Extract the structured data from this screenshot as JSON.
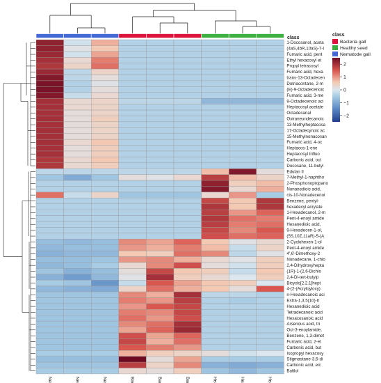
{
  "chart_data": {
    "type": "heatmap",
    "columns": [
      "Nem_3",
      "Nem_1",
      "Nem_2",
      "Bact_1",
      "Bact_2",
      "Bact_3",
      "Health_3",
      "Health_1",
      "Health_2"
    ],
    "column_class": [
      "Nematode gall",
      "Nematode gall",
      "Nematode gall",
      "Bacteria gall",
      "Bacteria gall",
      "Bacteria gall",
      "Healthy seed",
      "Healthy seed",
      "Healthy seed"
    ],
    "rows": [
      "1-Docosanol, aceta",
      "(4aS,4bR,10aS)-7-I",
      "Fumaric acid, pent",
      "Ethyl hexacosyl et",
      "Propyl tetracosyl",
      "Fumaric acid, hexa",
      "trans-13-Octadecen",
      "Dotriacontane, 2-m",
      "(E)-9-Octadecenoic",
      "Fumaric acid, 3-me",
      "9-Octadecenoic aci",
      "Heptacosyl acetate",
      "Octadecanal",
      "Oxiraneundecanoic",
      "13-Methylheptacosa",
      "17-Octadecynoic ac",
      "15-Methylnonacosan",
      "Fumaric acid, 4-oc",
      "Heptacos-1-ene",
      "Heptacosyl trifluo",
      "Carbonic acid, oct",
      "Docosane, 11-butyl",
      "Edulan II",
      "7-Methyl-1-naphtho",
      "2-Phosphonopropano",
      "Nonanedioic acid,",
      "cis-10-Nonadecenoi",
      "Benzene, pentyl-",
      "hexadecyl acrylate",
      "1-Hexadecanol, 2-m",
      "Pent-4-enoyl amide",
      "Hexanedioic acid,",
      "9-Hexadecen-1-ol,",
      "(5S,10Z,11aR)-5-(A",
      "2-Cyclohexen-1-ol",
      "Pent-4-enoyl amide",
      "4',6'-Dimethoxy-2",
      "Nonadecane, 1-chlo",
      "2,4-Dihydroxyhepta",
      "(1R)-1-(2,6-Dichlo",
      "2,4-Di-tert-butylp",
      "Bicyclo[2.2.1]hept",
      "4-(2-(Acryloyloxy)",
      "n-Hexadecanoic aci",
      "Estra-1,3,5(10)-tr",
      "Hexanedioic acid",
      "Tetradecanoic acid",
      "Hexacosanoic acid",
      "Arsenous acid, tri",
      "Oct-3-enoylamide,",
      "Benzene, 1,3-dimet",
      "Fumaric acid, 2-et",
      "Carbonic acid, but",
      "Isopropyl hexacosy",
      "Stigmastane-3,6-di",
      "Carbonic acid, eic",
      "Batilol"
    ],
    "values": [
      [
        2.2,
        -0.1,
        0.8,
        -0.4,
        -0.4,
        -0.4,
        -0.4,
        -0.4,
        -0.4
      ],
      [
        2.2,
        0.1,
        0.6,
        -0.4,
        -0.4,
        -0.4,
        -0.4,
        -0.4,
        -0.4
      ],
      [
        2.1,
        -0.1,
        0.9,
        -0.4,
        -0.4,
        -0.4,
        -0.4,
        -0.4,
        -0.4
      ],
      [
        2.0,
        0.3,
        1.2,
        -0.4,
        -0.4,
        -0.4,
        -0.4,
        -0.4,
        -0.4
      ],
      [
        1.9,
        0.4,
        1.3,
        -0.4,
        -0.4,
        -0.4,
        -0.4,
        -0.4,
        -0.4
      ],
      [
        2.1,
        -0.3,
        0.4,
        -0.4,
        -0.4,
        -0.4,
        -0.4,
        -0.4,
        -0.4
      ],
      [
        2.3,
        -0.3,
        0.2,
        -0.4,
        -0.4,
        -0.4,
        -0.4,
        -0.4,
        -0.4
      ],
      [
        2.4,
        -0.4,
        0.1,
        -0.4,
        -0.4,
        -0.4,
        -0.4,
        -0.4,
        -0.4
      ],
      [
        2.4,
        -0.4,
        0.2,
        -0.4,
        -0.4,
        -0.4,
        -0.4,
        -0.4,
        -0.4
      ],
      [
        2.3,
        -0.2,
        0.3,
        -0.4,
        -0.4,
        -0.4,
        -0.4,
        -0.4,
        -0.4
      ],
      [
        2.0,
        0.3,
        0.4,
        -0.3,
        -0.3,
        -0.3,
        -0.8,
        -0.8,
        -0.8
      ],
      [
        2.0,
        0.3,
        0.4,
        -0.4,
        -0.4,
        -0.4,
        -0.4,
        -0.4,
        -0.4
      ],
      [
        2.0,
        0.2,
        0.4,
        -0.4,
        -0.4,
        -0.4,
        -0.4,
        -0.4,
        -0.4
      ],
      [
        2.0,
        0.2,
        0.5,
        -0.4,
        -0.4,
        -0.4,
        -0.4,
        -0.4,
        -0.4
      ],
      [
        2.0,
        0.2,
        0.4,
        -0.4,
        -0.4,
        -0.4,
        -0.4,
        -0.4,
        -0.4
      ],
      [
        2.0,
        0.2,
        0.4,
        -0.4,
        -0.4,
        -0.4,
        -0.4,
        -0.4,
        -0.4
      ],
      [
        2.0,
        0.2,
        0.4,
        -0.4,
        -0.4,
        -0.4,
        -0.4,
        -0.4,
        -0.4
      ],
      [
        2.0,
        0.3,
        0.6,
        -0.4,
        -0.4,
        -0.4,
        -0.4,
        -0.4,
        -0.4
      ],
      [
        2.0,
        0.2,
        0.5,
        -0.4,
        -0.4,
        -0.4,
        -0.4,
        -0.4,
        -0.4
      ],
      [
        2.0,
        0.2,
        0.5,
        -0.4,
        -0.4,
        -0.4,
        -0.4,
        -0.4,
        -0.4
      ],
      [
        1.9,
        0.3,
        0.6,
        -0.4,
        -0.4,
        -0.4,
        -0.4,
        -0.4,
        -0.4
      ],
      [
        1.9,
        0.3,
        0.5,
        -0.4,
        -0.4,
        -0.4,
        -0.4,
        -0.4,
        -0.4
      ],
      [
        -0.3,
        -0.3,
        -0.3,
        -0.3,
        -0.3,
        -0.3,
        0.7,
        2.3,
        0.2
      ],
      [
        -0.6,
        -1.0,
        -0.6,
        0.2,
        0.1,
        0.3,
        1.8,
        0.7,
        0.4
      ],
      [
        -0.4,
        -0.4,
        -0.4,
        -0.4,
        -0.4,
        -0.4,
        2.2,
        0.5,
        0.7
      ],
      [
        -0.4,
        -0.4,
        -0.4,
        -0.4,
        -0.4,
        -0.4,
        2.3,
        0.3,
        0.8
      ],
      [
        1.3,
        -0.2,
        0.4,
        -0.6,
        -0.6,
        -0.6,
        0.3,
        1.0,
        -0.5
      ],
      [
        -0.4,
        -0.4,
        -0.4,
        -0.4,
        -0.4,
        -0.4,
        1.7,
        0.6,
        1.9
      ],
      [
        -0.4,
        -0.4,
        -0.4,
        -0.4,
        -0.4,
        -0.4,
        1.9,
        0.6,
        1.9
      ],
      [
        -0.4,
        -0.4,
        -0.4,
        -0.4,
        -0.4,
        -0.4,
        1.8,
        1.0,
        1.4
      ],
      [
        -0.4,
        -0.4,
        -0.4,
        -0.4,
        -0.4,
        -0.4,
        1.9,
        1.3,
        1.2
      ],
      [
        -0.4,
        -0.4,
        -0.4,
        -0.4,
        -0.4,
        -0.4,
        1.8,
        1.2,
        1.3
      ],
      [
        -0.4,
        -0.4,
        -0.4,
        -0.4,
        -0.4,
        -0.4,
        1.7,
        1.1,
        1.5
      ],
      [
        -0.4,
        -0.4,
        -0.4,
        -0.4,
        -0.4,
        -0.4,
        1.6,
        1.3,
        1.4
      ],
      [
        -0.7,
        -0.8,
        -0.7,
        1.1,
        0.9,
        1.4,
        0.6,
        0.1,
        0.3
      ],
      [
        -0.8,
        -0.7,
        -0.7,
        1.0,
        0.8,
        1.2,
        0.7,
        -0.2,
        0.4
      ],
      [
        -0.9,
        -0.8,
        -0.8,
        0.6,
        0.5,
        1.3,
        1.1,
        -0.3,
        0.1
      ],
      [
        -0.7,
        -0.7,
        -0.6,
        1.0,
        1.1,
        0.8,
        0.3,
        0.1,
        0.5
      ],
      [
        -0.8,
        -0.7,
        -0.5,
        0.3,
        1.1,
        1.6,
        0.2,
        -0.1,
        0.5
      ],
      [
        -0.6,
        -0.9,
        -0.7,
        0.2,
        1.7,
        0.6,
        0.5,
        -0.2,
        0.6
      ],
      [
        -0.9,
        -1.2,
        -0.8,
        0.1,
        2.0,
        0.5,
        0.3,
        0.0,
        0.5
      ],
      [
        -0.5,
        -0.6,
        -1.3,
        -0.2,
        1.5,
        0.9,
        0.6,
        0.5,
        0.0
      ],
      [
        -0.8,
        -0.9,
        -1.0,
        0.4,
        1.3,
        0.8,
        0.6,
        0.2,
        1.5
      ],
      [
        -0.6,
        -0.6,
        -0.6,
        1.1,
        0.8,
        2.0,
        -0.3,
        -0.3,
        -0.4
      ],
      [
        -0.6,
        -0.6,
        -0.6,
        1.2,
        1.0,
        1.8,
        -0.4,
        -0.5,
        -0.4
      ],
      [
        -0.6,
        -0.6,
        -0.6,
        1.0,
        1.5,
        1.7,
        -0.4,
        -0.4,
        -0.4
      ],
      [
        -0.6,
        -0.6,
        -0.6,
        1.2,
        1.1,
        1.7,
        -0.4,
        -0.4,
        -0.4
      ],
      [
        -0.6,
        -0.6,
        -0.6,
        1.3,
        1.0,
        1.6,
        -0.4,
        -0.4,
        -0.4
      ],
      [
        -0.6,
        -0.6,
        -0.6,
        1.1,
        1.3,
        2.0,
        -0.4,
        -0.4,
        -0.4
      ],
      [
        -0.6,
        -0.6,
        -0.6,
        0.9,
        1.4,
        2.1,
        -0.4,
        -0.4,
        -0.4
      ],
      [
        -0.6,
        -0.6,
        -0.6,
        1.6,
        0.9,
        1.4,
        -0.4,
        -0.4,
        -0.4
      ],
      [
        -0.6,
        -0.6,
        -0.6,
        1.7,
        0.8,
        1.3,
        -0.4,
        -0.4,
        -0.4
      ],
      [
        -0.6,
        -0.6,
        -0.6,
        1.5,
        1.2,
        1.0,
        -0.4,
        -0.4,
        -0.4
      ],
      [
        -0.5,
        -0.5,
        -0.5,
        0.8,
        0.5,
        0.4,
        0.2,
        -0.1,
        0.0
      ],
      [
        -0.7,
        -0.7,
        -0.7,
        2.5,
        0.2,
        0.9,
        -0.5,
        -0.5,
        -0.5
      ],
      [
        -0.6,
        -0.6,
        -0.6,
        1.8,
        0.4,
        1.1,
        -0.9,
        -1.0,
        -0.9
      ],
      [
        -0.5,
        -0.5,
        -0.5,
        0.3,
        0.2,
        0.5,
        -0.6,
        -0.8,
        -0.6
      ]
    ],
    "color_scale": {
      "colors": [
        "#1f3d8c",
        "#5a88c4",
        "#a8cce4",
        "#dbe6ee",
        "#f4c9b3",
        "#d9574f",
        "#6e0b22"
      ],
      "domain": [
        -2.5,
        -1.5,
        -0.5,
        0,
        0.6,
        1.5,
        2.5
      ],
      "ticks": [
        2,
        1,
        0,
        -1,
        -2
      ]
    },
    "legend": {
      "title": "class",
      "entries": [
        {
          "label": "Bacteria gall",
          "color": "#dc143c"
        },
        {
          "label": "Healthy seed",
          "color": "#3cb043"
        },
        {
          "label": "Nematode gall",
          "color": "#4469d6"
        }
      ]
    },
    "class_colors": {
      "Nematode gall": "#4469d6",
      "Bacteria gall": "#dc143c",
      "Healthy seed": "#3cb043"
    },
    "class_bar_label": "class",
    "legend_placement": "top-right"
  }
}
